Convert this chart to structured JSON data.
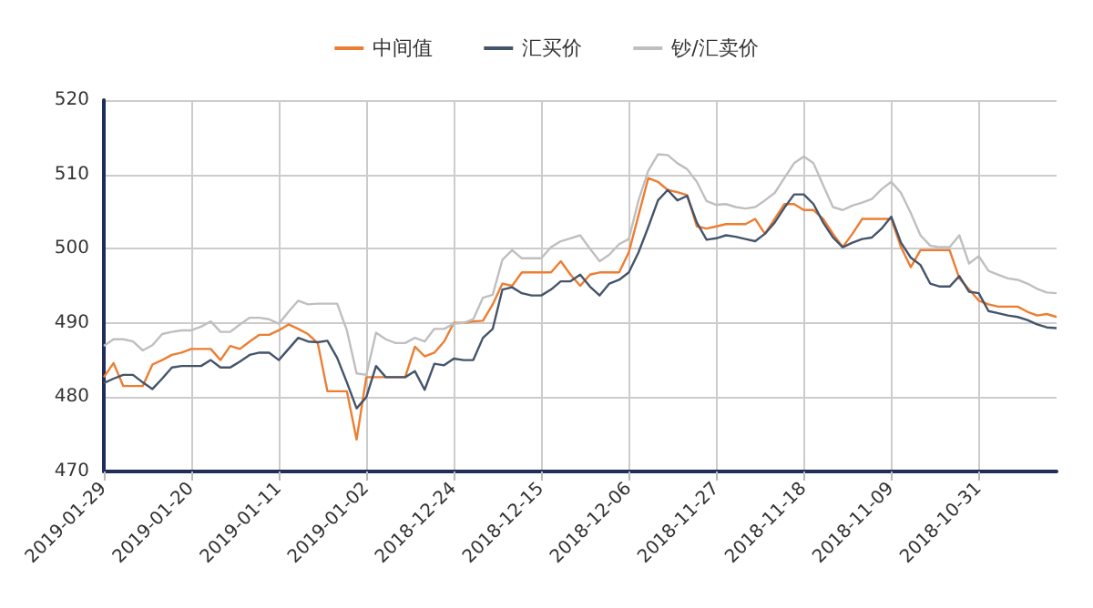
{
  "chart_data": {
    "type": "line",
    "categories": [
      "2019-01-29",
      null,
      null,
      null,
      null,
      null,
      null,
      null,
      null,
      "2019-01-20",
      null,
      null,
      null,
      null,
      null,
      null,
      null,
      null,
      "2019-01-11",
      null,
      null,
      null,
      null,
      null,
      null,
      null,
      null,
      "2019-01-02",
      null,
      null,
      null,
      null,
      null,
      null,
      null,
      null,
      "2018-12-24",
      null,
      null,
      null,
      null,
      null,
      null,
      null,
      null,
      "2018-12-15",
      null,
      null,
      null,
      null,
      null,
      null,
      null,
      null,
      "2018-12-06",
      null,
      null,
      null,
      null,
      null,
      null,
      null,
      null,
      "2018-11-27",
      null,
      null,
      null,
      null,
      null,
      null,
      null,
      null,
      "2018-11-18",
      null,
      null,
      null,
      null,
      null,
      null,
      null,
      null,
      "2018-11-09",
      null,
      null,
      null,
      null,
      null,
      null,
      null,
      null,
      "2018-10-31",
      null,
      null,
      null,
      null,
      null,
      null,
      null,
      null
    ],
    "series": [
      {
        "name": "中间值",
        "color": "#ed7d31",
        "values": [
          482.7,
          484.6,
          481.5,
          481.5,
          481.5,
          484.4,
          485,
          485.7,
          486,
          486.5,
          486.5,
          486.5,
          485,
          486.9,
          486.5,
          487.5,
          488.4,
          488.4,
          489,
          489.8,
          489.2,
          488.5,
          487.3,
          480.8,
          480.8,
          480.8,
          474.3,
          482.7,
          482.7,
          482.7,
          482.7,
          482.7,
          486.8,
          485.5,
          486,
          487.5,
          490,
          490,
          490.2,
          490.3,
          492.5,
          495.3,
          495,
          496.8,
          496.8,
          496.8,
          496.8,
          498.3,
          496.5,
          495,
          496.5,
          496.8,
          496.8,
          496.8,
          499.5,
          504.5,
          509.5,
          509,
          507.9,
          507.6,
          507.2,
          503,
          502.7,
          503,
          503.3,
          503.3,
          503.3,
          504,
          502,
          504,
          506,
          506,
          505.2,
          505.2,
          504,
          502,
          500.2,
          502,
          504,
          504,
          504,
          504,
          500.2,
          497.5,
          499.8,
          499.8,
          499.8,
          499.8,
          496,
          494.5,
          493,
          492.5,
          492.2,
          492.2,
          492.2,
          491.5,
          491,
          491.2,
          490.8
        ]
      },
      {
        "name": "汇买价",
        "color": "#44546a",
        "values": [
          481.9,
          482.5,
          483,
          483,
          482,
          481.1,
          482.5,
          484,
          484.2,
          484.2,
          484.2,
          485,
          484,
          484,
          484.8,
          485.7,
          486,
          486,
          485,
          486.5,
          488,
          487.5,
          487.4,
          487.6,
          485.3,
          482,
          478.5,
          480,
          484.2,
          482.7,
          482.7,
          482.7,
          483.5,
          481,
          484.5,
          484.3,
          485.2,
          485,
          485,
          488,
          489.2,
          494.5,
          494.8,
          494,
          493.7,
          493.7,
          494.5,
          495.6,
          495.6,
          496.5,
          494.9,
          493.7,
          495.3,
          495.8,
          496.8,
          499.5,
          502.9,
          506.5,
          507.9,
          506.5,
          507.1,
          503.5,
          501.2,
          501.4,
          501.8,
          501.6,
          501.3,
          501,
          502,
          503.5,
          505.5,
          507.3,
          507.3,
          506,
          503.5,
          501.5,
          500.2,
          500.8,
          501.3,
          501.5,
          502.7,
          504.3,
          500.8,
          498.8,
          497.8,
          495.3,
          494.9,
          494.9,
          496.3,
          494.2,
          494,
          491.6,
          491.3,
          491,
          490.8,
          490.4,
          489.8,
          489.4,
          489.3
        ]
      },
      {
        "name": "钞/汇卖价",
        "color": "#bfbfbf",
        "values": [
          486.9,
          487.8,
          487.8,
          487.5,
          486.3,
          487,
          488.5,
          488.8,
          489,
          489,
          489.5,
          490.2,
          488.8,
          488.8,
          489.8,
          490.7,
          490.7,
          490.5,
          489.9,
          491.5,
          493,
          492.5,
          492.6,
          492.6,
          492.6,
          489,
          483.2,
          483,
          488.7,
          487.8,
          487.3,
          487.3,
          488,
          487.5,
          489.2,
          489.2,
          489.9,
          490,
          490.5,
          493.4,
          493.8,
          498.5,
          499.8,
          498.7,
          498.7,
          498.7,
          500.2,
          501,
          501.4,
          501.8,
          500,
          498.3,
          499.2,
          500.6,
          501.3,
          506.5,
          510.5,
          512.7,
          512.6,
          511.5,
          510.7,
          509,
          506.4,
          505.9,
          506,
          505.6,
          505.4,
          505.6,
          506.5,
          507.5,
          509.5,
          511.5,
          512.4,
          511.5,
          508.5,
          505.6,
          505.2,
          505.8,
          506.2,
          506.7,
          508,
          509,
          507.5,
          504.8,
          501.8,
          500.4,
          500.2,
          500.2,
          501.8,
          498,
          499,
          497,
          496.5,
          496,
          495.8,
          495.3,
          494.6,
          494.1,
          494
        ]
      }
    ],
    "ylim": [
      470,
      520
    ],
    "yticks": [
      470,
      480,
      490,
      500,
      510,
      520
    ],
    "grid": true,
    "legend": "top",
    "marker": "none",
    "line_style": "solid"
  }
}
